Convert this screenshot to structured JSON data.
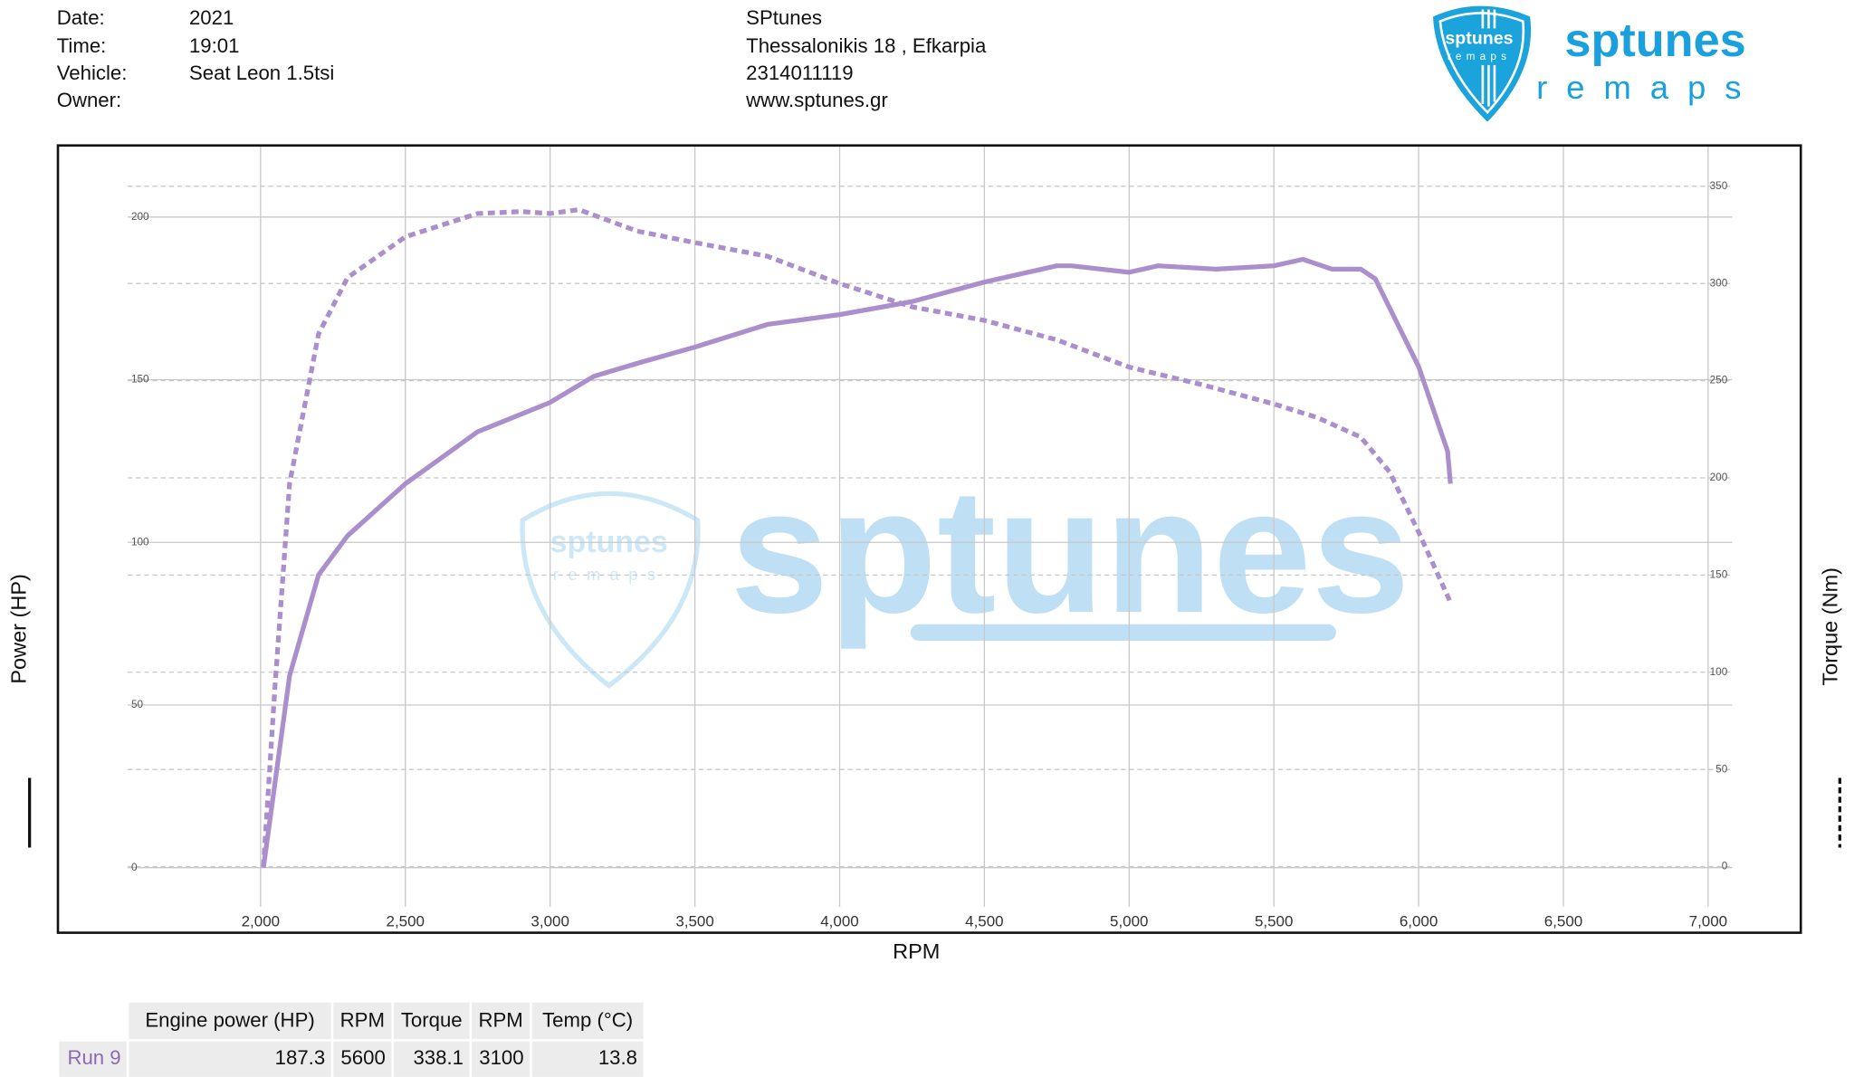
{
  "header": {
    "fields": [
      {
        "label": "Date:",
        "value": "2021"
      },
      {
        "label": "Time:",
        "value": "19:01"
      },
      {
        "label": "Vehicle:",
        "value": "Seat Leon 1.5tsi"
      },
      {
        "label": "Owner:"
      }
    ],
    "company": [
      "SPtunes",
      "Thessalonikis 18 , Efkarpia",
      "2314011119",
      "www.sptunes.gr"
    ]
  },
  "logo": {
    "name": "sptunes",
    "tagline": "remaps"
  },
  "watermark": "sptunes",
  "chart_data": {
    "type": "line",
    "x_label": "RPM",
    "y_label": "Power (HP)",
    "y2_label": "Torque (Nm)",
    "xlim": [
      1300,
      7320
    ],
    "xticks": [
      {
        "value": 2000,
        "label": "2,000"
      },
      {
        "value": 2500,
        "label": "2,500"
      },
      {
        "value": 3000,
        "label": "3,000"
      },
      {
        "value": 3500,
        "label": "3,500"
      },
      {
        "value": 4000,
        "label": "4,000"
      },
      {
        "value": 4500,
        "label": "4,500"
      },
      {
        "value": 5000,
        "label": "5,000"
      },
      {
        "value": 5500,
        "label": "5,500"
      },
      {
        "value": 6000,
        "label": "6,000"
      },
      {
        "value": 6500,
        "label": "6,500"
      },
      {
        "value": 7000,
        "label": "7,000"
      }
    ],
    "ylim": [
      -20,
      222
    ],
    "yticks": [
      0,
      50,
      100,
      150,
      200
    ],
    "y2lim": [
      -34,
      371
    ],
    "y2ticks": [
      0,
      50,
      100,
      150,
      200,
      250,
      300,
      350
    ],
    "grid": true,
    "series": [
      {
        "color": "#ab8fcc",
        "style": "solid",
        "x": [
          2010,
          2100,
          2200,
          2300,
          2500,
          2750,
          3000,
          3150,
          3300,
          3500,
          3750,
          4000,
          4250,
          4500,
          4750,
          4800,
          5000,
          5100,
          5300,
          5500,
          5600,
          5700,
          5800,
          5850,
          6000,
          6100,
          6110
        ],
        "values": [
          0,
          59,
          90,
          102,
          118,
          134,
          143,
          151,
          155,
          160,
          167,
          170,
          174,
          180,
          185,
          185,
          183,
          185,
          184,
          185,
          187,
          184,
          184,
          181,
          154,
          128,
          118
        ]
      },
      {
        "color": "#ab8fcc",
        "style": "dashed",
        "axis": "y2",
        "x": [
          2010,
          2050,
          2100,
          2200,
          2300,
          2500,
          2750,
          2900,
          3000,
          3100,
          3300,
          3500,
          3750,
          4000,
          4250,
          4500,
          4750,
          5000,
          5250,
          5500,
          5650,
          5800,
          5900,
          6000,
          6110
        ],
        "values": [
          0,
          93,
          197,
          274,
          303,
          324,
          336,
          337,
          336,
          338,
          327,
          321,
          314,
          300,
          288,
          281,
          271,
          257,
          248,
          238,
          231,
          221,
          203,
          172,
          136
        ]
      }
    ]
  },
  "table": {
    "columns": [
      "Engine power (HP)",
      "RPM",
      "Torque",
      "RPM",
      "Temp (°C)"
    ],
    "rows": [
      {
        "name": "Run 9",
        "cells": [
          187.3,
          5600,
          338.1,
          3100,
          13.8
        ]
      }
    ]
  }
}
